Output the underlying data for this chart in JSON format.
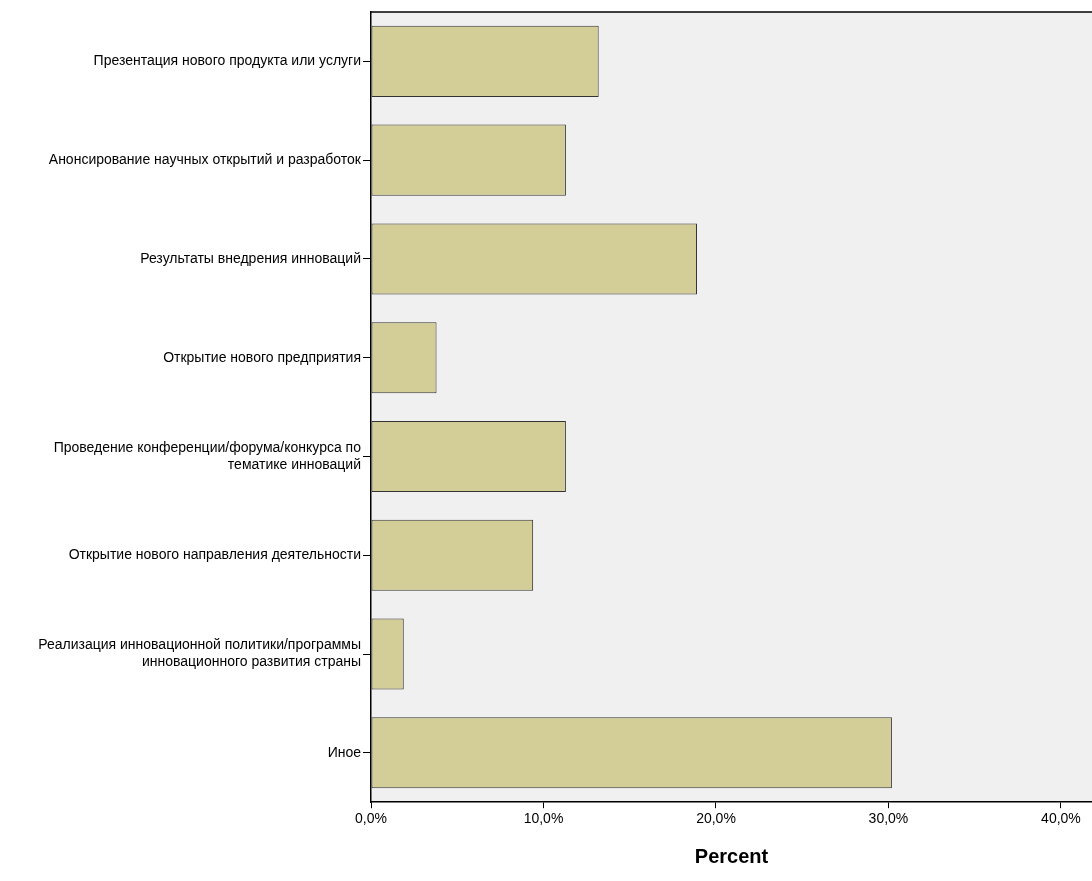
{
  "chart_data": {
    "type": "bar",
    "orientation": "horizontal",
    "xlabel": "Percent",
    "categories": [
      "Презентация нового продукта или услуги",
      "Анонсирование научных открытий и разработок",
      "Результаты внедрения инноваций",
      "Открытие нового предприятия",
      "Проведение конференции/форума/конкурса по тематике инноваций",
      "Открытие нового направления деятельности",
      "Реализация инновационной политики/программы инновационного развития страны",
      "Иное"
    ],
    "values": [
      13.2,
      11.3,
      18.9,
      3.8,
      11.3,
      9.4,
      1.9,
      30.2
    ],
    "color": "#d3ce98",
    "xlim": [
      0,
      41.8
    ],
    "xticks": [
      {
        "value": 0,
        "label": "0,0%"
      },
      {
        "value": 10,
        "label": "10,0%"
      },
      {
        "value": 20,
        "label": "20,0%"
      },
      {
        "value": 30,
        "label": "30,0%"
      },
      {
        "value": 40,
        "label": "40,0%"
      }
    ],
    "grid": false,
    "legend": false
  }
}
